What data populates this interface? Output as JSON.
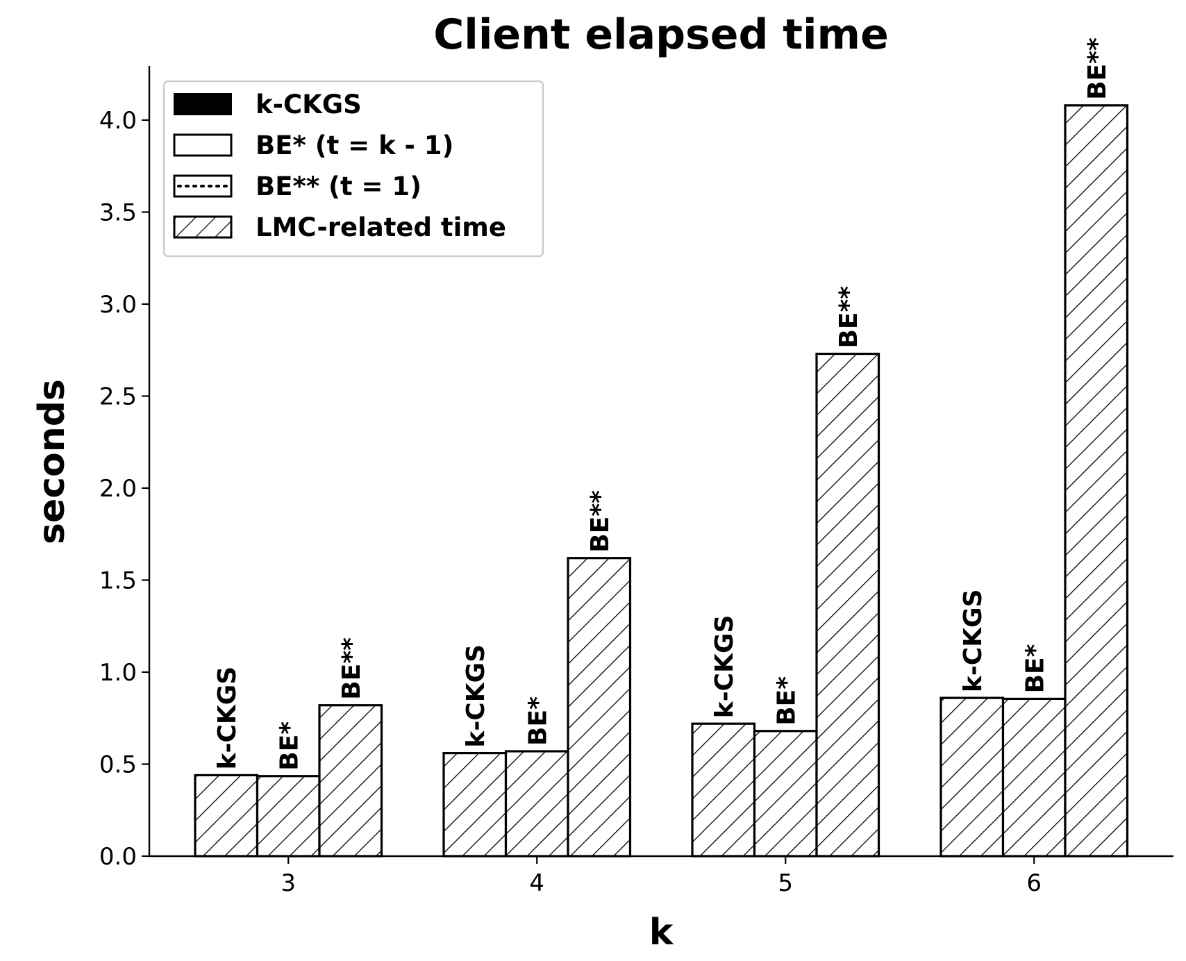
{
  "chart_data": {
    "type": "bar",
    "title": "Client elapsed time",
    "xlabel": "k",
    "ylabel": "seconds",
    "categories": [
      "3",
      "4",
      "5",
      "6"
    ],
    "ylim": [
      0,
      4.3
    ],
    "yticks": [
      "0.0",
      "0.5",
      "1.0",
      "1.5",
      "2.0",
      "2.5",
      "3.0",
      "3.5",
      "4.0"
    ],
    "grid": false,
    "legend_position": "top-left",
    "legend": [
      {
        "label": "k-CKGS",
        "style": "solid-black"
      },
      {
        "label": "BE* (t = k - 1)",
        "style": "white"
      },
      {
        "label": "BE** (t = 1)",
        "style": "dotted"
      },
      {
        "label": "LMC-related time",
        "style": "hatched"
      }
    ],
    "series": [
      {
        "name": "k-CKGS",
        "bar_label": "k-CKGS",
        "values": [
          0.44,
          0.56,
          0.72,
          0.86
        ]
      },
      {
        "name": "BE* (t = k - 1)",
        "bar_label": "BE*",
        "values": [
          0.435,
          0.57,
          0.68,
          0.855
        ]
      },
      {
        "name": "BE** (t = 1)",
        "bar_label": "BE**",
        "values": [
          0.82,
          1.62,
          2.73,
          4.08
        ]
      }
    ],
    "colors": {
      "stroke": "#000000",
      "fill": "#ffffff",
      "hatch": "#000000"
    }
  }
}
